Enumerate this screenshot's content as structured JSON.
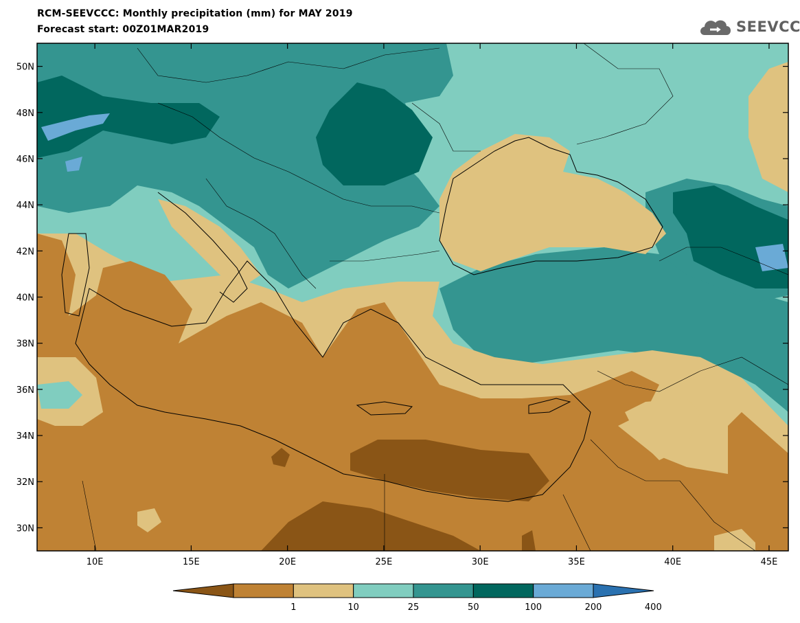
{
  "title_line1": "RCM-SEEVCCC: Monthly precipitation (mm) for MAY 2019",
  "title_line2": "Forecast start: 00Z01MAR2019",
  "logo_text": "SEEVCCC",
  "map": {
    "lon_range": [
      7,
      46
    ],
    "lat_range": [
      29,
      51
    ],
    "lat_ticks": [
      {
        "value": 50,
        "label": "50N"
      },
      {
        "value": 48,
        "label": "48N"
      },
      {
        "value": 46,
        "label": "46N"
      },
      {
        "value": 44,
        "label": "44N"
      },
      {
        "value": 42,
        "label": "42N"
      },
      {
        "value": 40,
        "label": "40N"
      },
      {
        "value": 38,
        "label": "38N"
      },
      {
        "value": 36,
        "label": "36N"
      },
      {
        "value": 34,
        "label": "34N"
      },
      {
        "value": 32,
        "label": "32N"
      },
      {
        "value": 30,
        "label": "30N"
      }
    ],
    "lon_ticks": [
      {
        "value": 10,
        "label": "10E"
      },
      {
        "value": 15,
        "label": "15E"
      },
      {
        "value": 20,
        "label": "20E"
      },
      {
        "value": 25,
        "label": "25E"
      },
      {
        "value": 30,
        "label": "30E"
      },
      {
        "value": 35,
        "label": "35E"
      },
      {
        "value": 40,
        "label": "40E"
      },
      {
        "value": 45,
        "label": "45E"
      }
    ]
  },
  "colorbar": {
    "colors": [
      "#8a5516",
      "#bf8234",
      "#dfc27f",
      "#80cdbf",
      "#349590",
      "#01675e",
      "#6aaad6",
      "#2a71b0"
    ],
    "labels": [
      "1",
      "10",
      "25",
      "50",
      "100",
      "200",
      "400"
    ]
  }
}
